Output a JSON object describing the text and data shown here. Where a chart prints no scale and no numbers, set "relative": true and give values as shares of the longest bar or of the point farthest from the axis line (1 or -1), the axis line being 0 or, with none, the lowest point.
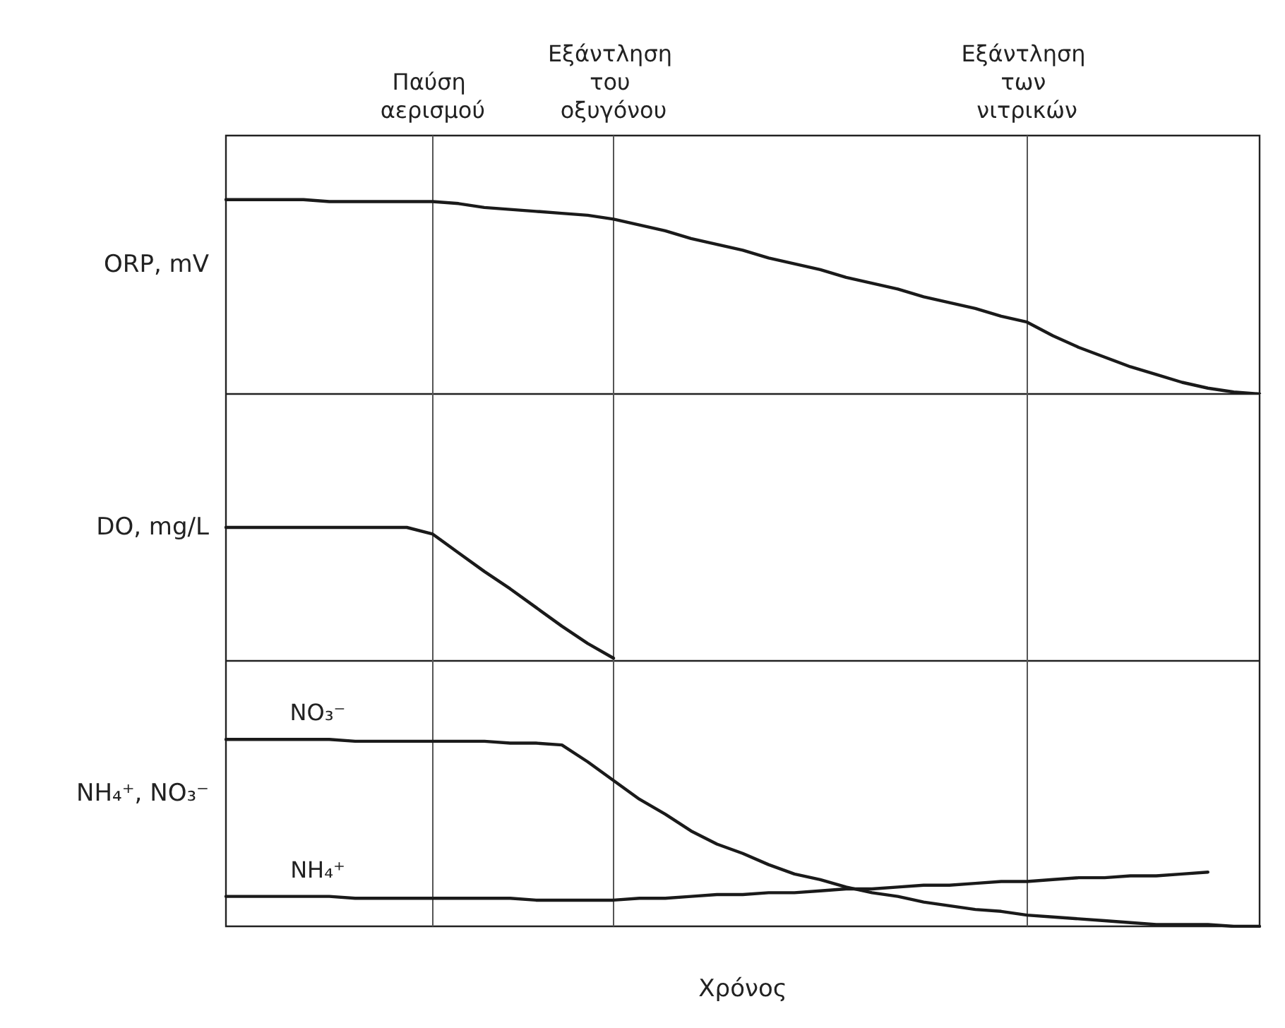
{
  "chart_data": [
    {
      "type": "line",
      "ylabel": "ORP, mV",
      "relative": true,
      "tick_labels": false,
      "marker": "none",
      "line_style": "solid",
      "categories": [
        null,
        null,
        null,
        null,
        null,
        null,
        null,
        null,
        null,
        null,
        null,
        null,
        null,
        null,
        null,
        null,
        null,
        null,
        null,
        null,
        null,
        null,
        null,
        null,
        null,
        null,
        null,
        null,
        null,
        null,
        null,
        null,
        null,
        null,
        null,
        null,
        null,
        null,
        null,
        null,
        null
      ],
      "series": [
        {
          "color": "#1a1a1a",
          "values": [
            1,
            1,
            1,
            1,
            0.99,
            0.99,
            0.99,
            0.99,
            0.99,
            0.98,
            0.96,
            0.95,
            0.94,
            0.93,
            0.92,
            0.9,
            0.87,
            0.84,
            0.8,
            0.77,
            0.74,
            0.7,
            0.67,
            0.64,
            0.6,
            0.57,
            0.54,
            0.5,
            0.47,
            0.44,
            0.4,
            0.37,
            0.3,
            0.24,
            0.19,
            0.14,
            0.1,
            0.06,
            0.03,
            0.01,
            0
          ]
        }
      ],
      "grid": "x",
      "annotations": [
        "Παύση αερισμού",
        "Εξάντληση του οξυγόνου",
        "Εξάντληση των νιτρικών"
      ]
    },
    {
      "type": "line",
      "ylabel": "DO, mg/L",
      "relative": true,
      "tick_labels": false,
      "marker": "none",
      "line_style": "solid",
      "categories": [
        null,
        null,
        null,
        null,
        null,
        null,
        null,
        null,
        null,
        null,
        null,
        null,
        null,
        null,
        null,
        null,
        null,
        null,
        null,
        null,
        null,
        null,
        null,
        null,
        null,
        null,
        null,
        null,
        null,
        null,
        null,
        null,
        null,
        null,
        null,
        null,
        null,
        null,
        null,
        null,
        null
      ],
      "series": [
        {
          "color": "#1a1a1a",
          "values": [
            1,
            1,
            1,
            1,
            1,
            1,
            1,
            1,
            0.95,
            0.81,
            0.67,
            0.54,
            0.4,
            0.26,
            0.13,
            0.02,
            null,
            null,
            null,
            null,
            null,
            null,
            null,
            null,
            null,
            null,
            null,
            null,
            null,
            null,
            null,
            null,
            null,
            null,
            null,
            null,
            null,
            null,
            null,
            null,
            null
          ]
        }
      ],
      "grid": "x"
    },
    {
      "type": "line",
      "ylabel": "NH₄⁺, NO₃⁻",
      "xlabel": "Χρόνος",
      "relative": true,
      "tick_labels": false,
      "marker": "none",
      "line_style": "solid",
      "categories": [
        null,
        null,
        null,
        null,
        null,
        null,
        null,
        null,
        null,
        null,
        null,
        null,
        null,
        null,
        null,
        null,
        null,
        null,
        null,
        null,
        null,
        null,
        null,
        null,
        null,
        null,
        null,
        null,
        null,
        null,
        null,
        null,
        null,
        null,
        null,
        null,
        null,
        null,
        null,
        null,
        null
      ],
      "series": [
        {
          "name": "NO₃⁻",
          "color": "#1a1a1a",
          "values": [
            1,
            1,
            1,
            1,
            1,
            0.99,
            0.99,
            0.99,
            0.99,
            0.99,
            0.99,
            0.98,
            0.98,
            0.97,
            0.88,
            0.78,
            0.68,
            0.6,
            0.51,
            0.44,
            0.39,
            0.33,
            0.28,
            0.25,
            0.21,
            0.18,
            0.16,
            0.13,
            0.11,
            0.09,
            0.08,
            0.06,
            0.05,
            0.04,
            0.03,
            0.02,
            0.01,
            0.01,
            0.01,
            0,
            0
          ]
        },
        {
          "name": "NH₄⁺",
          "color": "#1a1a1a",
          "values": [
            0.16,
            0.16,
            0.16,
            0.16,
            0.16,
            0.15,
            0.15,
            0.15,
            0.15,
            0.15,
            0.15,
            0.15,
            0.14,
            0.14,
            0.14,
            0.14,
            0.15,
            0.15,
            0.16,
            0.17,
            0.17,
            0.18,
            0.18,
            0.19,
            0.2,
            0.2,
            0.21,
            0.22,
            0.22,
            0.23,
            0.24,
            0.24,
            0.25,
            0.26,
            0.26,
            0.27,
            0.27,
            0.28,
            0.29,
            null,
            null
          ]
        }
      ],
      "grid": "x"
    }
  ]
}
